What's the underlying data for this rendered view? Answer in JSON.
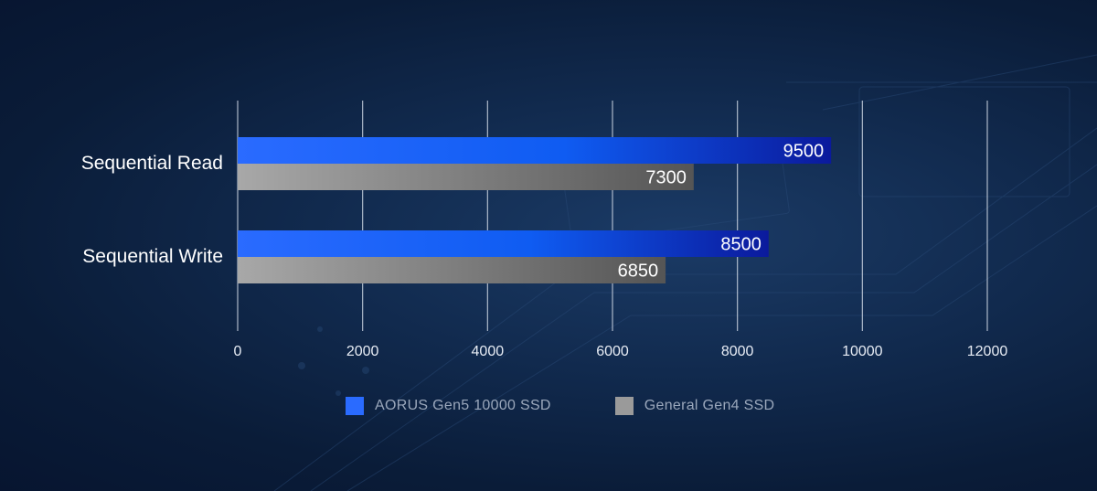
{
  "chart_data": {
    "type": "bar",
    "orientation": "horizontal",
    "categories": [
      "Sequential Read",
      "Sequential Write"
    ],
    "series": [
      {
        "name": "AORUS Gen5 10000 SSD",
        "values": [
          9500,
          8500
        ],
        "color": "#2a6bff"
      },
      {
        "name": "General Gen4 SSD",
        "values": [
          7300,
          6850
        ],
        "color": "#9a9a9a"
      }
    ],
    "xlim": [
      0,
      12000
    ],
    "xticks": [
      0,
      2000,
      4000,
      6000,
      8000,
      10000,
      12000
    ],
    "grid": true,
    "legend_position": "bottom",
    "data_labels": true
  }
}
